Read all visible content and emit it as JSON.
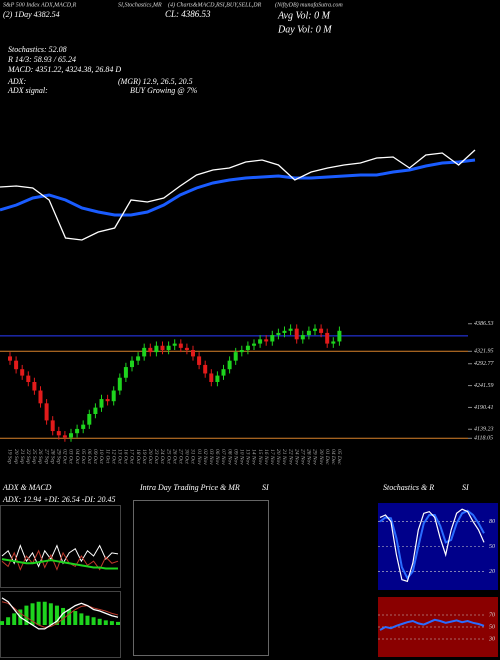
{
  "header": {
    "texts": [
      "S&P 500 Index ADX,MACD,R",
      "(2) 1Day   4382.54",
      "SI,Stochastics,MR",
      "(4) Charts&MACD,RSI,BUY,SELL,DR",
      "CL: 4386.53",
      "(NiftyDB) munafaSutra.com",
      "Avg Vol: 0  M",
      "Day Vol: 0  M",
      "Stochastics: 52.08",
      "R  14/3: 58.93 / 65.24",
      "MACD: 4351.22, 4324.38, 26.84  D",
      "ADX:",
      "(MGR) 12.9, 26.5, 20.5",
      "ADX  signal:",
      "BUY Growing @ 7%"
    ]
  },
  "main_chart": {
    "ylim": [
      0,
      100
    ],
    "price_line": [
      58,
      59,
      57,
      45,
      7,
      5,
      13,
      17,
      45,
      43,
      47,
      59,
      70,
      75,
      77,
      83,
      85,
      80,
      65,
      73,
      77,
      80,
      82,
      87,
      88,
      77,
      90,
      92,
      80,
      95
    ],
    "ma_line": [
      35,
      40,
      47,
      50,
      45,
      37,
      33,
      30,
      30,
      33,
      40,
      50,
      57,
      62,
      65,
      67,
      68,
      69,
      67,
      67,
      68,
      69,
      70,
      70,
      73,
      75,
      79,
      82,
      83,
      85
    ]
  },
  "candles": {
    "ylim": [
      4100,
      4400
    ],
    "yticks": [
      4386.53,
      4321.95,
      4292.77,
      4241.59,
      4190.41,
      4139.23,
      4118.05
    ],
    "lines": [
      {
        "value": 4358,
        "color": "#2a3cff"
      },
      {
        "value": 4321.95,
        "color": "#d9822b"
      },
      {
        "value": 4118.05,
        "color": "#d9822b"
      }
    ],
    "dates": [
      "19 Sep",
      "20 Sep",
      "21 Sep",
      "22 Sep",
      "25 Sep",
      "26 Sep",
      "27 Sep",
      "28 Sep",
      "29 Sep",
      "02 Oct",
      "03 Oct",
      "04 Oct",
      "05 Oct",
      "06 Oct",
      "09 Oct",
      "10 Oct",
      "11 Oct",
      "12 Oct",
      "13 Oct",
      "16 Oct",
      "17 Oct",
      "18 Oct",
      "19 Oct",
      "20 Oct",
      "23 Oct",
      "24 Oct",
      "25 Oct",
      "26 Oct",
      "27 Oct",
      "30 Oct",
      "31 Oct",
      "01 Nov",
      "02 Nov",
      "03 Nov",
      "06 Nov",
      "07 Nov",
      "08 Nov",
      "09 Nov",
      "10 Nov",
      "13 Nov",
      "14 Nov",
      "15 Nov",
      "16 Nov",
      "17 Nov",
      "20 Nov",
      "21 Nov",
      "22 Nov",
      "24 Nov",
      "27 Nov",
      "28 Nov",
      "29 Nov",
      "30 Nov",
      "01 Dec",
      "04 Dec",
      "05 Dec"
    ],
    "open": [
      4310,
      4300,
      4280,
      4265,
      4250,
      4230,
      4200,
      4160,
      4135,
      4125,
      4120,
      4130,
      4140,
      4150,
      4175,
      4190,
      4210,
      4205,
      4230,
      4260,
      4285,
      4300,
      4310,
      4330,
      4320,
      4335,
      4325,
      4335,
      4340,
      4330,
      4325,
      4310,
      4290,
      4270,
      4250,
      4265,
      4280,
      4300,
      4320,
      4325,
      4335,
      4340,
      4350,
      4345,
      4360,
      4365,
      4370,
      4375,
      4350,
      4360,
      4370,
      4375,
      4365,
      4340,
      4345
    ],
    "high": [
      4320,
      4310,
      4290,
      4275,
      4260,
      4240,
      4210,
      4170,
      4145,
      4135,
      4140,
      4150,
      4160,
      4185,
      4200,
      4220,
      4220,
      4240,
      4270,
      4295,
      4310,
      4320,
      4340,
      4340,
      4345,
      4345,
      4345,
      4350,
      4350,
      4340,
      4335,
      4320,
      4300,
      4280,
      4275,
      4290,
      4310,
      4330,
      4335,
      4345,
      4350,
      4360,
      4360,
      4370,
      4375,
      4380,
      4385,
      4385,
      4370,
      4380,
      4385,
      4385,
      4375,
      4355,
      4380
    ],
    "low": [
      4290,
      4270,
      4255,
      4240,
      4220,
      4190,
      4150,
      4125,
      4115,
      4110,
      4110,
      4120,
      4130,
      4140,
      4165,
      4180,
      4195,
      4195,
      4220,
      4250,
      4275,
      4290,
      4300,
      4310,
      4310,
      4315,
      4315,
      4325,
      4320,
      4315,
      4300,
      4280,
      4260,
      4240,
      4240,
      4255,
      4270,
      4290,
      4310,
      4315,
      4325,
      4330,
      4335,
      4335,
      4350,
      4355,
      4360,
      4340,
      4340,
      4350,
      4360,
      4355,
      4330,
      4330,
      4335
    ],
    "close": [
      4300,
      4280,
      4265,
      4250,
      4230,
      4200,
      4160,
      4135,
      4125,
      4120,
      4130,
      4140,
      4150,
      4175,
      4190,
      4210,
      4205,
      4230,
      4260,
      4285,
      4300,
      4310,
      4330,
      4320,
      4335,
      4325,
      4335,
      4340,
      4330,
      4325,
      4310,
      4290,
      4270,
      4250,
      4265,
      4280,
      4300,
      4320,
      4325,
      4335,
      4340,
      4350,
      4345,
      4360,
      4365,
      4370,
      4375,
      4350,
      4360,
      4370,
      4375,
      4365,
      4340,
      4345,
      4370
    ]
  },
  "adx_panel": {
    "title": "ADX & MACD",
    "label": "ADX: 12.94  +DI: 26.54  -DI: 20.45",
    "ylim": [
      0,
      50
    ],
    "adx": [
      22,
      21,
      20,
      19,
      18,
      18,
      19,
      20,
      21,
      20,
      19,
      18,
      17,
      16,
      15,
      14,
      14,
      13,
      13,
      13
    ],
    "plus_di": [
      25,
      30,
      18,
      35,
      20,
      28,
      15,
      30,
      22,
      35,
      18,
      28,
      32,
      20,
      30,
      25,
      35,
      22,
      28,
      27
    ],
    "minus_di": [
      20,
      15,
      28,
      12,
      25,
      18,
      30,
      14,
      26,
      12,
      28,
      18,
      15,
      25,
      16,
      20,
      12,
      24,
      18,
      20
    ]
  },
  "macd_panel": {
    "ylim": [
      -40,
      40
    ],
    "histogram": [
      5,
      10,
      15,
      20,
      25,
      28,
      30,
      30,
      28,
      25,
      22,
      20,
      18,
      15,
      12,
      10,
      8,
      6,
      5,
      4
    ],
    "macd": [
      35,
      30,
      20,
      10,
      5,
      0,
      -5,
      -5,
      0,
      5,
      15,
      20,
      25,
      28,
      25,
      20,
      18,
      15,
      12,
      10
    ],
    "signal": [
      30,
      28,
      22,
      15,
      10,
      5,
      0,
      -3,
      -2,
      2,
      8,
      14,
      20,
      24,
      25,
      22,
      20,
      18,
      15,
      13
    ]
  },
  "intraday_panel": {
    "title": "Intra Day Trading Price & MR",
    "title2": "SI"
  },
  "stoch_panel": {
    "title": "Stochastics & R",
    "title2": "SI",
    "ylim": [
      0,
      100
    ],
    "yticks": [
      20,
      50,
      80
    ],
    "k": [
      85,
      88,
      80,
      40,
      10,
      8,
      30,
      70,
      90,
      92,
      85,
      60,
      40,
      70,
      90,
      95,
      92,
      80,
      70,
      55
    ],
    "d": [
      80,
      85,
      84,
      60,
      25,
      12,
      20,
      50,
      78,
      88,
      88,
      75,
      55,
      58,
      78,
      90,
      93,
      88,
      78,
      66
    ]
  },
  "rsi_panel": {
    "ylim": [
      0,
      100
    ],
    "yticks": [
      30,
      50,
      70
    ],
    "values": [
      45,
      50,
      48,
      52,
      55,
      58,
      60,
      56,
      54,
      58,
      62,
      60,
      57,
      59,
      61,
      58,
      60,
      57,
      55,
      52
    ]
  }
}
